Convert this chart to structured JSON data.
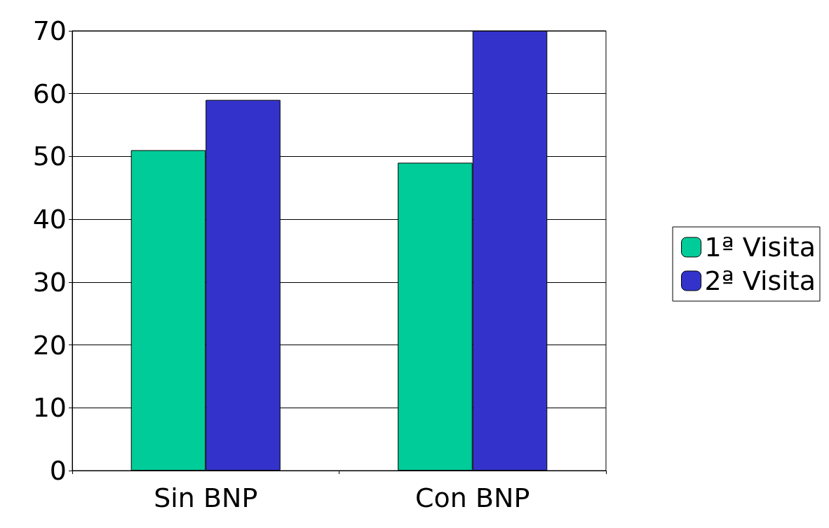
{
  "chart_data": {
    "type": "bar",
    "categories": [
      "Sin BNP",
      "Con BNP"
    ],
    "series": [
      {
        "name": "1ª Visita",
        "color": "#00cc99",
        "values": [
          51,
          49
        ]
      },
      {
        "name": "2ª Visita",
        "color": "#3333cc",
        "values": [
          59,
          70
        ]
      }
    ],
    "ylim": [
      0,
      70
    ],
    "yticks": [
      0,
      10,
      20,
      30,
      40,
      50,
      60,
      70
    ],
    "grid": "y",
    "legend": "right"
  }
}
